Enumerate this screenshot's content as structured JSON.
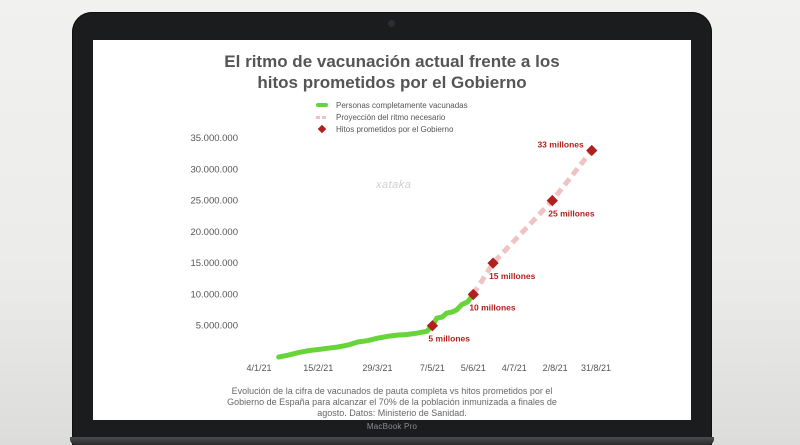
{
  "watermark": "xataka",
  "device_label": "MacBook Pro",
  "chart_data": {
    "type": "line",
    "title": "El ritmo de vacunación actual frente a los hitos prometidos por el Gobierno",
    "title_lines": [
      "El ritmo de vacunación actual frente a los",
      "hitos prometidos por el Gobierno"
    ],
    "xlabel": "",
    "ylabel": "",
    "caption": "Evolución de la cifra de vacunados de pauta completa vs hitos prometidos por el Gobierno de España para alcanzar el 70% de la población inmunizada a finales de agosto. Datos: Ministerio de Sanidad.",
    "x_tick_labels": [
      "4/1/21",
      "15/2/21",
      "29/3/21",
      "7/5/21",
      "5/6/21",
      "4/7/21",
      "2/8/21",
      "31/8/21"
    ],
    "x_tick_days": [
      0,
      42,
      84,
      123,
      152,
      181,
      210,
      239
    ],
    "y_tick_labels": [
      "5.000.000",
      "10.000.000",
      "15.000.000",
      "20.000.000",
      "25.000.000",
      "30.000.000",
      "35.000.000"
    ],
    "y_tick_values": [
      5000000,
      10000000,
      15000000,
      20000000,
      25000000,
      30000000,
      35000000
    ],
    "ylim": [
      0,
      35000000
    ],
    "grid": false,
    "legend_position": "top-center",
    "colors": {
      "actual": "#67d43a",
      "projection": "#f0c2c2",
      "milestones": "#b0201d",
      "axis_text": "#555555"
    },
    "series": [
      {
        "name": "Personas completamente vacunadas",
        "style": "line",
        "x": [
          "2021-01-18",
          "2021-01-25",
          "2021-02-01",
          "2021-02-08",
          "2021-02-15",
          "2021-02-22",
          "2021-03-01",
          "2021-03-08",
          "2021-03-15",
          "2021-03-22",
          "2021-03-29",
          "2021-04-05",
          "2021-04-12",
          "2021-04-19",
          "2021-04-26",
          "2021-05-03",
          "2021-05-07",
          "2021-05-10",
          "2021-05-14",
          "2021-05-17",
          "2021-05-21",
          "2021-05-24",
          "2021-05-28",
          "2021-06-01",
          "2021-06-05"
        ],
        "y": [
          0,
          300000,
          700000,
          1000000,
          1200000,
          1400000,
          1600000,
          1900000,
          2400000,
          2600000,
          3000000,
          3300000,
          3500000,
          3600000,
          3800000,
          4100000,
          5000000,
          6200000,
          6400000,
          7000000,
          7200000,
          7500000,
          8400000,
          8800000,
          10000000
        ]
      },
      {
        "name": "Proyección del ritmo necesario",
        "style": "dashed",
        "x": [
          "2021-06-05",
          "2021-06-19",
          "2021-07-31",
          "2021-08-28"
        ],
        "y": [
          10000000,
          15000000,
          25000000,
          33000000
        ]
      },
      {
        "name": "Hitos prometidos por el Gobierno",
        "style": "markers",
        "x": [
          "2021-05-07",
          "2021-06-05",
          "2021-06-19",
          "2021-07-31",
          "2021-08-28"
        ],
        "y": [
          5000000,
          10000000,
          15000000,
          25000000,
          33000000
        ],
        "labels": [
          "5 millones",
          "10 millones",
          "15 millones",
          "25 millones",
          "33 millones"
        ]
      }
    ]
  }
}
